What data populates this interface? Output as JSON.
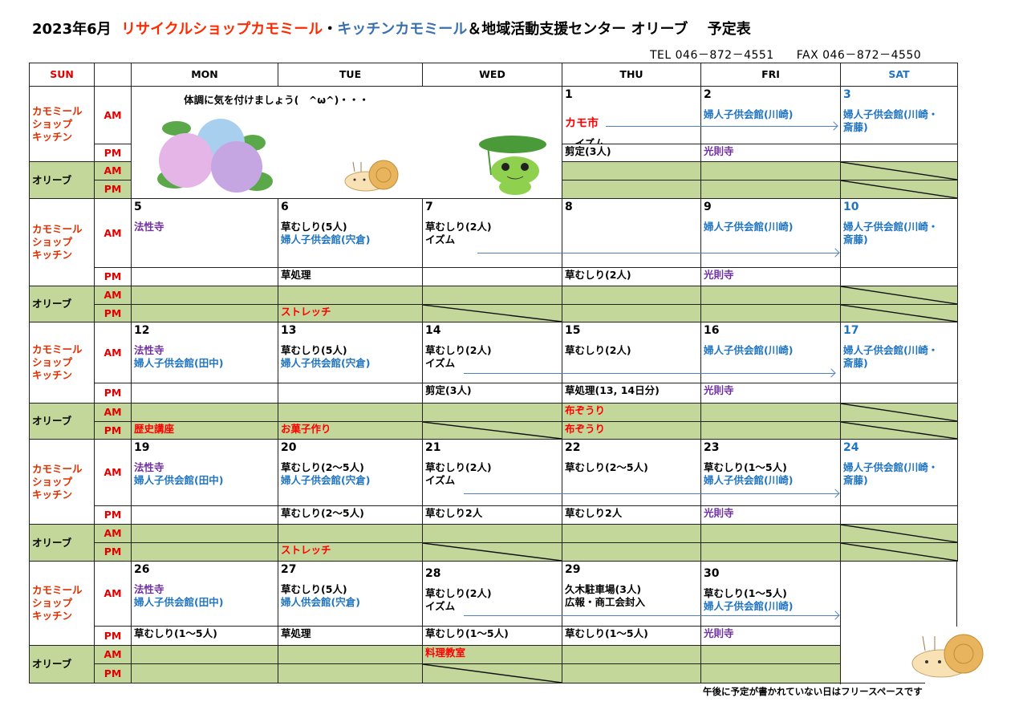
{
  "header": {
    "year_month": "2023年6月",
    "shop_name": "リサイクルショップカモミール",
    "dot": "・",
    "kitchen_name": "キッチンカモミール",
    "rest": "＆地域活動支援センター オリーブ　 予定表",
    "tel": "TEL 046－872－4551",
    "fax": "FAX 046－872－4550"
  },
  "colors": {
    "black": "#000000",
    "blue": "#1f74c2",
    "purple": "#7030a0",
    "red": "#ff0000",
    "olive_fill": "#c4d79b",
    "arrow": "#4f7fbf"
  },
  "columns": {
    "sun": "SUN",
    "blank": "",
    "mon": "MON",
    "tue": "TUE",
    "wed": "WED",
    "thu": "THU",
    "fri": "FRI",
    "sat": "SAT"
  },
  "row_labels": {
    "kamomile": "カモミール\nショップ\nキッチン",
    "olive": "オリーブ",
    "am": "AM",
    "pm": "PM"
  },
  "message": "体調に気を付けましょう(　^ω^)・・・",
  "images": [
    "hydrangea",
    "snail",
    "frog",
    "snail"
  ],
  "weeks": [
    {
      "days": [
        null,
        null,
        null,
        {
          "date": "1",
          "date_note": "カモ市",
          "am": [
            [
              "k",
              "　イズム"
            ]
          ],
          "pm": [
            [
              "k",
              "剪定(3人)"
            ]
          ]
        },
        {
          "date": "2",
          "am": [
            [
              "b",
              "婦人子供会館(川崎)"
            ]
          ],
          "pm": [
            [
              "p",
              "光則寺"
            ]
          ]
        },
        {
          "date": "3",
          "am": [
            [
              "b",
              "婦人子供会館(川崎・\n斎藤)"
            ]
          ]
        }
      ]
    },
    {
      "days": [
        {
          "date": "5",
          "am": [
            [
              "p",
              "法性寺"
            ]
          ]
        },
        {
          "date": "6",
          "am": [
            [
              "k",
              "草むしり(5人)"
            ],
            [
              "b",
              "婦人子供会館(宍倉)"
            ]
          ],
          "pm": [
            [
              "k",
              "草処理"
            ]
          ],
          "opm": [
            [
              "r",
              "ストレッチ"
            ]
          ]
        },
        {
          "date": "7",
          "am": [
            [
              "k",
              "草むしり(2人)"
            ],
            [
              "k",
              "イズム"
            ]
          ]
        },
        {
          "date": "8",
          "pm": [
            [
              "k",
              "草むしり(2人)"
            ]
          ]
        },
        {
          "date": "9",
          "am": [
            [
              "b",
              "婦人子供会館(川崎)"
            ]
          ],
          "pm": [
            [
              "p",
              "光則寺"
            ]
          ]
        },
        {
          "date": "10",
          "am": [
            [
              "b",
              "婦人子供会館(川崎・\n斎藤)"
            ]
          ]
        }
      ]
    },
    {
      "days": [
        {
          "date": "12",
          "am": [
            [
              "p",
              "法性寺"
            ],
            [
              "b",
              "婦人子供会館(田中)"
            ]
          ],
          "opm": [
            [
              "r",
              "歴史講座"
            ]
          ]
        },
        {
          "date": "13",
          "am": [
            [
              "k",
              "草むしり(5人)"
            ],
            [
              "b",
              "婦人子供会館(宍倉)"
            ]
          ],
          "opm": [
            [
              "r",
              "お菓子作り"
            ]
          ]
        },
        {
          "date": "14",
          "am": [
            [
              "k",
              "草むしり(2人)"
            ],
            [
              "k",
              "イズム"
            ]
          ],
          "pm": [
            [
              "k",
              "剪定(3人)"
            ]
          ]
        },
        {
          "date": "15",
          "am": [
            [
              "k",
              "草むしり(2人)"
            ]
          ],
          "pm": [
            [
              "k",
              "草処理(13, 14日分)"
            ]
          ],
          "oam": [
            [
              "r",
              "布ぞうり"
            ]
          ],
          "opm": [
            [
              "r",
              "布ぞうり"
            ]
          ]
        },
        {
          "date": "16",
          "am": [
            [
              "b",
              "婦人子供会館(川崎)"
            ]
          ],
          "pm": [
            [
              "p",
              "光則寺"
            ]
          ]
        },
        {
          "date": "17",
          "am": [
            [
              "b",
              "婦人子供会館(川崎・\n斎藤)"
            ]
          ]
        }
      ]
    },
    {
      "days": [
        {
          "date": "19",
          "am": [
            [
              "p",
              "法性寺"
            ],
            [
              "b",
              "婦人子供会館(田中)"
            ]
          ]
        },
        {
          "date": "20",
          "am": [
            [
              "k",
              "草むしり(2～5人)"
            ],
            [
              "b",
              "婦人子供会館(宍倉)"
            ]
          ],
          "pm": [
            [
              "k",
              "草むしり(2～5人)"
            ]
          ],
          "opm": [
            [
              "r",
              "ストレッチ"
            ]
          ]
        },
        {
          "date": "21",
          "am": [
            [
              "k",
              "草むしり(2人)"
            ],
            [
              "k",
              "イズム"
            ]
          ],
          "pm": [
            [
              "k",
              "草むしり2人"
            ]
          ]
        },
        {
          "date": "22",
          "am": [
            [
              "k",
              "草むしり(2～5人)"
            ]
          ],
          "pm": [
            [
              "k",
              "草むしり2人"
            ]
          ]
        },
        {
          "date": "23",
          "am": [
            [
              "k",
              "草むしり(1～5人)"
            ],
            [
              "b",
              "婦人子供会館(川崎)"
            ]
          ],
          "pm": [
            [
              "p",
              "光則寺"
            ]
          ]
        },
        {
          "date": "24",
          "am": [
            [
              "b",
              "婦人子供会館(川崎・\n斎藤)"
            ]
          ]
        }
      ]
    },
    {
      "days": [
        {
          "date": "26",
          "am": [
            [
              "p",
              "法性寺"
            ],
            [
              "b",
              "婦人子供会館(田中)"
            ]
          ],
          "pm": [
            [
              "k",
              "草むしり(1～5人)"
            ]
          ]
        },
        {
          "date": "27",
          "am": [
            [
              "k",
              "草むしり(5人)"
            ],
            [
              "b",
              "婦人供会館(宍倉)"
            ]
          ],
          "pm": [
            [
              "k",
              "草処理"
            ]
          ]
        },
        {
          "date": "28",
          "am": [
            [
              "k",
              "草むしり(2人)"
            ],
            [
              "k",
              "イズム"
            ]
          ],
          "pm": [
            [
              "k",
              "草むしり(1～5人)"
            ]
          ],
          "oam": [
            [
              "r",
              "料理教室"
            ]
          ]
        },
        {
          "date": "29",
          "am": [
            [
              "k",
              "久木駐車場(3人)"
            ],
            [
              "k",
              "広報・商工会封入"
            ]
          ],
          "pm": [
            [
              "k",
              "草むしり(1～5人)"
            ]
          ]
        },
        {
          "date": "30",
          "am": [
            [
              "k",
              "草むしり(1～5人)"
            ],
            [
              "b",
              "婦人子供会館(川崎)"
            ]
          ],
          "pm": [
            [
              "p",
              "光則寺"
            ]
          ]
        },
        null
      ]
    }
  ],
  "footer_note": "午後に予定が書かれていない日はフリースペースです"
}
